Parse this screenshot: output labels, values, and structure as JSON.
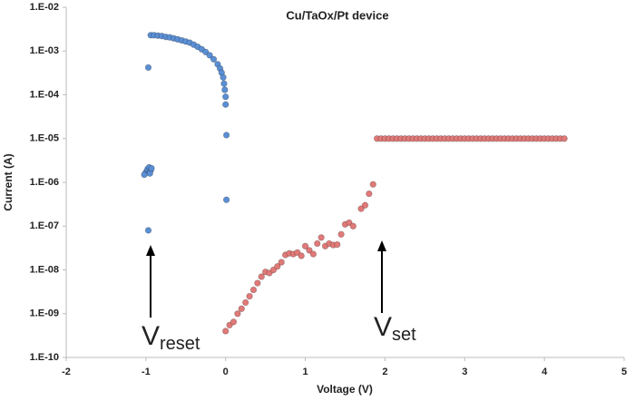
{
  "chart_data": {
    "type": "scatter",
    "title": "Cu/TaOx/Pt device",
    "x_label": "Voltage (V)",
    "y_label": "Current (A)",
    "log_y": true,
    "xlim": [
      -2,
      5
    ],
    "xticks": [
      -2,
      -1,
      0,
      1,
      2,
      3,
      4,
      5
    ],
    "ylim": [
      1e-10,
      0.01
    ],
    "yticks": [
      {
        "value": 1e-10,
        "label": "1.E-10"
      },
      {
        "value": 1e-09,
        "label": "1.E-09"
      },
      {
        "value": 1e-08,
        "label": "1.E-08"
      },
      {
        "value": 1e-07,
        "label": "1.E-07"
      },
      {
        "value": 1e-06,
        "label": "1.E-06"
      },
      {
        "value": 1e-05,
        "label": "1.E-05"
      },
      {
        "value": 0.0001,
        "label": "1.E-04"
      },
      {
        "value": 0.001,
        "label": "1.E-03"
      },
      {
        "value": 0.01,
        "label": "1.E-02"
      }
    ],
    "series": [
      {
        "color": "#5b8fd4",
        "x": [
          -1.0,
          -0.98,
          -0.96,
          -0.94,
          -1.02,
          -0.95,
          -0.93,
          -0.97,
          -0.97,
          -0.94,
          -0.9,
          -0.85,
          -0.8,
          -0.75,
          -0.7,
          -0.65,
          -0.6,
          -0.55,
          -0.5,
          -0.45,
          -0.4,
          -0.35,
          -0.3,
          -0.25,
          -0.2,
          -0.15,
          -0.1,
          -0.07,
          -0.05,
          -0.03,
          -0.02,
          -0.01,
          0,
          0,
          0.01,
          0.01
        ],
        "values": [
          1.7e-06,
          2e-06,
          2.2e-06,
          1.9e-06,
          1.5e-06,
          1.6e-06,
          2.1e-06,
          8e-08,
          0.00042,
          0.0023,
          0.0023,
          0.00225,
          0.0022,
          0.0021,
          0.00205,
          0.00195,
          0.00185,
          0.00175,
          0.00165,
          0.00155,
          0.0014,
          0.00125,
          0.0011,
          0.00095,
          0.0008,
          0.00065,
          0.0005,
          0.0004,
          0.00032,
          0.00025,
          0.00018,
          0.00013,
          9e-05,
          6e-05,
          1.2e-05,
          4e-07
        ]
      },
      {
        "color": "#e07a78",
        "x": [
          0.0,
          0.05,
          0.1,
          0.15,
          0.2,
          0.25,
          0.3,
          0.35,
          0.4,
          0.45,
          0.5,
          0.55,
          0.6,
          0.65,
          0.7,
          0.75,
          0.8,
          0.85,
          0.9,
          0.95,
          1.0,
          1.05,
          1.1,
          1.15,
          1.2,
          1.25,
          1.3,
          1.35,
          1.4,
          1.45,
          1.5,
          1.55,
          1.6,
          1.7,
          1.75,
          1.8,
          1.85,
          1.9,
          1.95,
          2.0,
          2.05,
          2.1,
          2.15,
          2.2,
          2.25,
          2.3,
          2.35,
          2.4,
          2.45,
          2.5,
          2.55,
          2.6,
          2.65,
          2.7,
          2.75,
          2.8,
          2.85,
          2.9,
          2.95,
          3.0,
          3.05,
          3.1,
          3.15,
          3.2,
          3.25,
          3.3,
          3.35,
          3.4,
          3.45,
          3.5,
          3.55,
          3.6,
          3.65,
          3.7,
          3.75,
          3.8,
          3.85,
          3.9,
          3.95,
          4.0,
          4.05,
          4.1,
          4.15,
          4.2,
          4.25
        ],
        "values": [
          4e-10,
          5.5e-10,
          6.5e-10,
          1e-09,
          1.3e-09,
          1.8e-09,
          2.5e-09,
          3.5e-09,
          5e-09,
          7e-09,
          9e-09,
          8.5e-09,
          1e-08,
          1.2e-08,
          1.5e-08,
          2.2e-08,
          2.4e-08,
          2.3e-08,
          2.5e-08,
          2.1e-08,
          3.5e-08,
          2.8e-08,
          2.3e-08,
          4e-08,
          5.5e-08,
          3.5e-08,
          4e-08,
          3.7e-08,
          3.8e-08,
          6.5e-08,
          1.1e-07,
          1.2e-07,
          1e-07,
          2.5e-07,
          3e-07,
          5.5e-07,
          9e-07,
          1e-05,
          1e-05,
          1e-05,
          1e-05,
          1e-05,
          1e-05,
          1e-05,
          1e-05,
          1e-05,
          1e-05,
          1e-05,
          1e-05,
          1e-05,
          1e-05,
          1e-05,
          1e-05,
          1e-05,
          1e-05,
          1e-05,
          1e-05,
          1e-05,
          1e-05,
          1e-05,
          1e-05,
          1e-05,
          1e-05,
          1e-05,
          1e-05,
          1e-05,
          1e-05,
          1e-05,
          1e-05,
          1e-05,
          1e-05,
          1e-05,
          1e-05,
          1e-05,
          1e-05,
          1e-05,
          1e-05,
          1e-05,
          1e-05,
          1e-05,
          1e-05,
          1e-05,
          1e-05,
          1e-05,
          1e-05
        ]
      }
    ],
    "annotations": [
      {
        "text": "V",
        "sub": "reset"
      },
      {
        "text": "V",
        "sub": "set"
      }
    ]
  }
}
